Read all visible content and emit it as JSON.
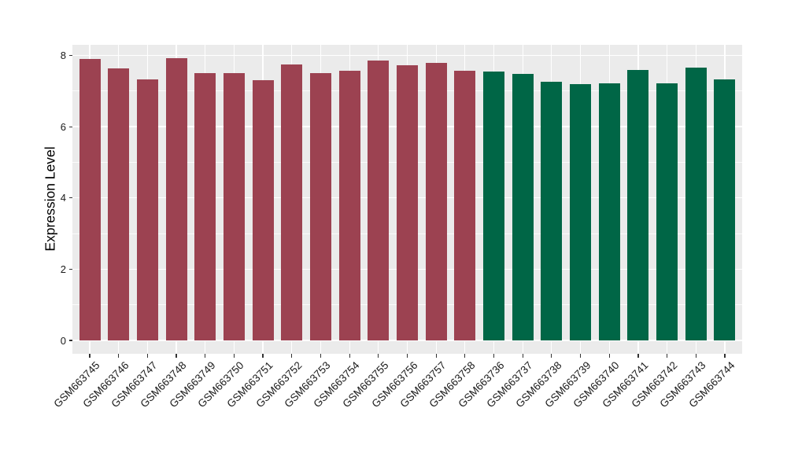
{
  "chart_data": {
    "type": "bar",
    "title": "",
    "xlabel": "",
    "ylabel": "Expression Level",
    "ylim": [
      0,
      8.3
    ],
    "yticks": [
      0,
      2,
      4,
      6,
      8
    ],
    "yticks_minor": [
      1,
      3,
      5,
      7
    ],
    "grid": true,
    "legend": false,
    "panel_bg": "#EBEBEB",
    "grid_color": "#FFFFFF",
    "tick_color": "#333333",
    "group_colors": [
      "#9C4251",
      "#006646"
    ],
    "bars": [
      {
        "label": "GSM663745",
        "value": 7.9,
        "group": 0
      },
      {
        "label": "GSM663746",
        "value": 7.64,
        "group": 0
      },
      {
        "label": "GSM663747",
        "value": 7.33,
        "group": 0
      },
      {
        "label": "GSM663748",
        "value": 7.92,
        "group": 0
      },
      {
        "label": "GSM663749",
        "value": 7.5,
        "group": 0
      },
      {
        "label": "GSM663750",
        "value": 7.5,
        "group": 0
      },
      {
        "label": "GSM663751",
        "value": 7.3,
        "group": 0
      },
      {
        "label": "GSM663752",
        "value": 7.75,
        "group": 0
      },
      {
        "label": "GSM663753",
        "value": 7.51,
        "group": 0
      },
      {
        "label": "GSM663754",
        "value": 7.57,
        "group": 0
      },
      {
        "label": "GSM663755",
        "value": 7.86,
        "group": 0
      },
      {
        "label": "GSM663756",
        "value": 7.72,
        "group": 0
      },
      {
        "label": "GSM663757",
        "value": 7.8,
        "group": 0
      },
      {
        "label": "GSM663758",
        "value": 7.57,
        "group": 0
      },
      {
        "label": "GSM663736",
        "value": 7.54,
        "group": 1
      },
      {
        "label": "GSM663737",
        "value": 7.48,
        "group": 1
      },
      {
        "label": "GSM663738",
        "value": 7.26,
        "group": 1
      },
      {
        "label": "GSM663739",
        "value": 7.2,
        "group": 1
      },
      {
        "label": "GSM663740",
        "value": 7.22,
        "group": 1
      },
      {
        "label": "GSM663741",
        "value": 7.59,
        "group": 1
      },
      {
        "label": "GSM663742",
        "value": 7.22,
        "group": 1
      },
      {
        "label": "GSM663743",
        "value": 7.65,
        "group": 1
      },
      {
        "label": "GSM663744",
        "value": 7.32,
        "group": 1
      }
    ]
  }
}
